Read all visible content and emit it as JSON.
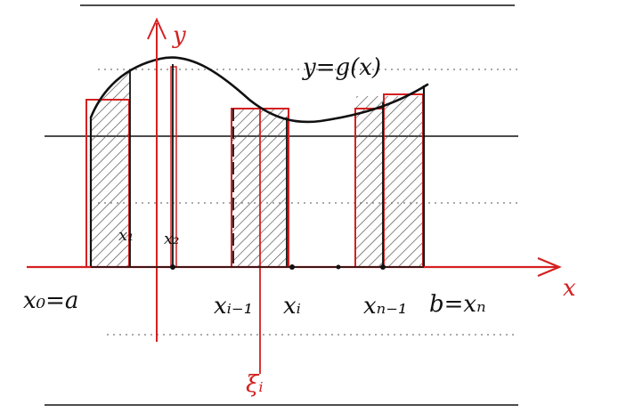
{
  "colors": {
    "ink": "#111111",
    "red": "#d42020",
    "paper_line": "#111111",
    "dotted_line": "#777777",
    "hatch": "#555555"
  },
  "labels": {
    "y_axis": "y",
    "x_axis": "x",
    "curve": "y=g(x)",
    "x0": "x₀=a",
    "x1": "x₁",
    "x2": "x₂",
    "x_i_minus_1": "xᵢ₋₁",
    "x_i": "xᵢ",
    "x_n_minus_1": "xₙ₋₁",
    "b": "b=xₙ",
    "xi_i": "ξᵢ"
  },
  "icons": {
    "x_axis_arrow": "arrow-right-icon",
    "y_axis_arrow": "arrow-up-icon"
  }
}
